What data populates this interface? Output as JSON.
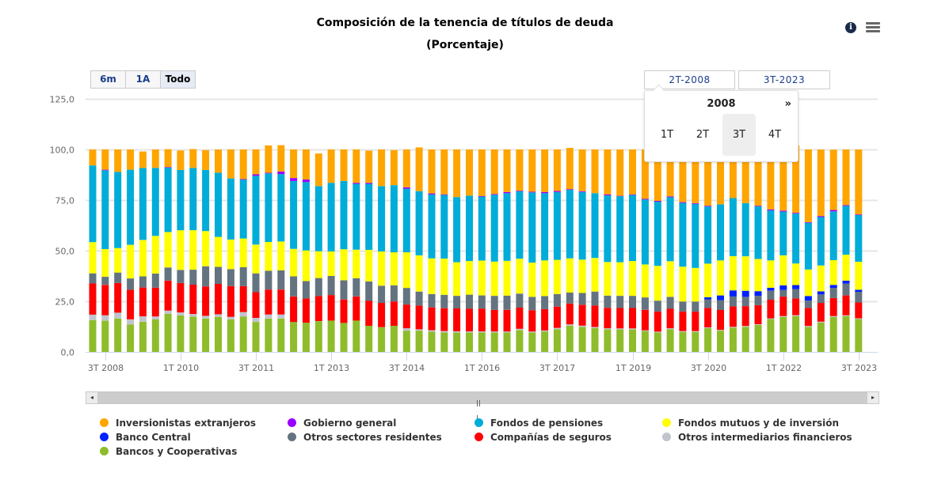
{
  "header": {
    "title": "Composición de la tenencia de títulos de deuda",
    "subtitle": "(Porcentaje)",
    "info_icon": "info-icon",
    "menu_icon": "hamburger-menu-icon"
  },
  "range_selector": {
    "buttons": [
      "6m",
      "1A",
      "Todo"
    ],
    "selected": "Todo",
    "from": "2T-2008",
    "to": "3T-2023"
  },
  "date_picker": {
    "year": "2008",
    "next_label": "»",
    "quarters": [
      "1T",
      "2T",
      "3T",
      "4T"
    ],
    "highlighted": "3T"
  },
  "scrollbar": {
    "left_arrow": "◂",
    "right_arrow": "▸"
  },
  "chart_data": {
    "type": "bar",
    "stacked": true,
    "title": "Composición de la tenencia de títulos de deuda",
    "subtitle": "(Porcentaje)",
    "xlabel": "",
    "ylabel": "",
    "ylim": [
      0,
      125
    ],
    "yticks": [
      "0,0",
      "25,0",
      "50,0",
      "75,0",
      "100,0",
      "125,0"
    ],
    "ytick_values": [
      0,
      25,
      50,
      75,
      100,
      125
    ],
    "xtick_labels": [
      "3T 2008",
      "1T 2010",
      "3T 2011",
      "1T 2013",
      "3T 2014",
      "1T 2016",
      "3T 2017",
      "1T 2019",
      "3T 2020",
      "1T 2022",
      "3T 2023"
    ],
    "xtick_indices": [
      1,
      7,
      13,
      19,
      25,
      31,
      37,
      43,
      49,
      55,
      61
    ],
    "grid": true,
    "legend_position": "bottom",
    "categories": [
      "2T 2008",
      "3T 2008",
      "4T 2008",
      "1T 2009",
      "2T 2009",
      "3T 2009",
      "4T 2009",
      "1T 2010",
      "2T 2010",
      "3T 2010",
      "4T 2010",
      "1T 2011",
      "2T 2011",
      "3T 2011",
      "4T 2011",
      "1T 2012",
      "2T 2012",
      "3T 2012",
      "4T 2012",
      "1T 2013",
      "2T 2013",
      "3T 2013",
      "4T 2013",
      "1T 2014",
      "2T 2014",
      "3T 2014",
      "4T 2014",
      "1T 2015",
      "2T 2015",
      "3T 2015",
      "4T 2015",
      "1T 2016",
      "2T 2016",
      "3T 2016",
      "4T 2016",
      "1T 2017",
      "2T 2017",
      "3T 2017",
      "4T 2017",
      "1T 2018",
      "2T 2018",
      "3T 2018",
      "4T 2018",
      "1T 2019",
      "2T 2019",
      "3T 2019",
      "4T 2019",
      "1T 2020",
      "2T 2020",
      "3T 2020",
      "4T 2020",
      "1T 2021",
      "2T 2021",
      "3T 2021",
      "4T 2021",
      "1T 2022",
      "2T 2022",
      "3T 2022",
      "4T 2022",
      "1T 2023",
      "2T 2023",
      "3T 2023"
    ],
    "series": [
      {
        "name": "Bancos y Cooperativas",
        "color": "#8fbc2b",
        "values": [
          15.7,
          15.4,
          16.5,
          13.5,
          14.9,
          16.0,
          18.8,
          18.0,
          17.4,
          16.5,
          17.3,
          16.0,
          17.4,
          14.8,
          16.5,
          16.5,
          14.8,
          14.4,
          15.2,
          15.5,
          14.3,
          15.5,
          12.9,
          12.2,
          12.9,
          10.5,
          10.5,
          10.0,
          9.6,
          9.6,
          9.6,
          9.6,
          9.6,
          9.6,
          10.8,
          9.6,
          10.1,
          11.2,
          12.9,
          12.4,
          11.8,
          11.2,
          11.1,
          11.1,
          10.3,
          9.6,
          11.2,
          9.9,
          9.9,
          11.7,
          10.5,
          12.0,
          12.4,
          13.3,
          16.2,
          17.3,
          17.7,
          12.4,
          14.5,
          17.3,
          17.7,
          16.2
        ]
      },
      {
        "name": "Otros intermediarios financieros",
        "color": "#c0c4cc",
        "values": [
          2.7,
          2.7,
          2.9,
          2.6,
          2.7,
          1.5,
          1.6,
          1.5,
          1.3,
          1.3,
          1.3,
          1.3,
          2.3,
          2.0,
          2.0,
          2.0,
          0.0,
          0.0,
          0.0,
          0.0,
          0.0,
          0.0,
          0.0,
          0.0,
          0.0,
          1.2,
          0.7,
          0.7,
          0.7,
          0.6,
          0.5,
          0.5,
          0.5,
          0.5,
          0.6,
          0.5,
          0.5,
          0.7,
          0.7,
          0.6,
          0.5,
          0.5,
          0.5,
          0.5,
          0.4,
          0.4,
          0.5,
          0.4,
          0.4,
          0.4,
          0.4,
          0.4,
          0.4,
          0.4,
          0.4,
          0.4,
          0.4,
          0.4,
          0.4,
          0.4,
          0.4,
          0.4
        ]
      },
      {
        "name": "Compañías de seguros",
        "color": "#ff0000",
        "values": [
          15.4,
          15.0,
          14.6,
          14.6,
          14.2,
          14.2,
          14.8,
          14.5,
          14.5,
          14.5,
          15.0,
          15.2,
          12.8,
          12.7,
          12.3,
          12.3,
          12.6,
          12.0,
          12.4,
          12.6,
          11.6,
          11.9,
          12.3,
          12.0,
          12.0,
          11.7,
          11.7,
          11.3,
          11.3,
          11.3,
          11.3,
          11.3,
          10.7,
          10.7,
          10.5,
          10.5,
          10.5,
          10.5,
          10.3,
          10.3,
          10.6,
          10.1,
          10.1,
          10.1,
          10.1,
          9.9,
          9.6,
          9.6,
          9.6,
          9.6,
          9.8,
          10.1,
          9.8,
          9.4,
          9.2,
          9.6,
          8.3,
          8.9,
          9.3,
          8.9,
          9.8,
          7.8
        ]
      },
      {
        "name": "Otros sectores residentes",
        "color": "#647380",
        "values": [
          5.0,
          4.0,
          5.2,
          5.6,
          5.5,
          7.0,
          6.5,
          6.5,
          7.4,
          10.0,
          8.4,
          8.4,
          9.3,
          9.3,
          9.3,
          9.5,
          9.9,
          8.6,
          8.9,
          9.4,
          9.5,
          9.0,
          9.6,
          8.5,
          8.0,
          8.2,
          6.9,
          6.6,
          6.6,
          6.2,
          6.9,
          6.5,
          6.9,
          7.0,
          6.9,
          6.6,
          6.5,
          6.2,
          5.4,
          5.8,
          6.9,
          6.0,
          6.0,
          6.0,
          6.1,
          5.4,
          5.9,
          5.0,
          5.0,
          4.3,
          4.9,
          4.9,
          4.6,
          4.6,
          4.4,
          3.3,
          4.6,
          3.6,
          4.2,
          5.0,
          5.8,
          5.3
        ]
      },
      {
        "name": "Banco Central",
        "color": "#0022ff",
        "values": [
          0,
          0,
          0,
          0,
          0,
          0,
          0,
          0,
          0,
          0,
          0,
          0,
          0,
          0,
          0,
          0,
          0,
          0,
          0,
          0,
          0,
          0,
          0,
          0,
          0,
          0,
          0,
          0,
          0,
          0,
          0,
          0,
          0,
          0,
          0,
          0,
          0,
          0,
          0,
          0,
          0,
          0,
          0,
          0,
          0,
          0,
          0,
          0,
          0,
          1.0,
          2.3,
          3.0,
          3.0,
          2.3,
          1.5,
          2.3,
          2.0,
          2.3,
          1.5,
          1.5,
          1.5,
          1.0
        ]
      },
      {
        "name": "Fondos mutuos y de inversión",
        "color": "#ffff00",
        "values": [
          15.4,
          13.7,
          12.1,
          16.6,
          18.0,
          18.6,
          17.5,
          19.6,
          19.5,
          17.4,
          14.8,
          14.6,
          14.2,
          14.2,
          14.2,
          14.2,
          13.6,
          15.1,
          13.2,
          12.1,
          15.3,
          14.1,
          15.6,
          16.9,
          16.3,
          17.6,
          17.9,
          17.6,
          17.9,
          16.6,
          16.6,
          17.2,
          16.9,
          17.2,
          17.2,
          16.9,
          17.6,
          16.9,
          16.9,
          16.5,
          16.6,
          16.6,
          16.6,
          17.2,
          16.3,
          17.2,
          17.6,
          17.2,
          16.6,
          16.6,
          17.3,
          16.9,
          17.0,
          15.9,
          13.5,
          14.8,
          10.7,
          13.1,
          12.8,
          12.2,
          12.8,
          13.8
        ]
      },
      {
        "name": "Fondos de pensiones",
        "color": "#00acd8",
        "values": [
          37.9,
          38.9,
          37.6,
          37.1,
          35.6,
          33.6,
          31.8,
          29.8,
          30.8,
          30.2,
          31.7,
          30.2,
          29.1,
          34.0,
          33.9,
          33.3,
          33.5,
          33.8,
          32.2,
          33.9,
          33.7,
          32.5,
          32.6,
          32.3,
          33.2,
          31.4,
          31.7,
          31.6,
          31.4,
          32.2,
          32.3,
          31.6,
          33.0,
          33.4,
          33.3,
          34.7,
          33.2,
          33.5,
          33.9,
          33.4,
          32.0,
          32.9,
          32.6,
          32.6,
          32.1,
          31.7,
          31.6,
          31.5,
          31.6,
          28.2,
          27.7,
          28.7,
          26.3,
          26.0,
          24.7,
          21.6,
          24.6,
          23.1,
          23.9,
          24.1,
          24.1,
          23.1
        ]
      },
      {
        "name": "Gobierno general",
        "color": "#9900ff",
        "values": [
          0,
          0.3,
          0,
          0,
          0,
          0,
          0.3,
          0,
          0,
          0,
          0,
          0,
          0.3,
          0.7,
          0.3,
          1.3,
          1.5,
          1.3,
          0,
          0,
          0,
          0.5,
          0.5,
          0,
          0,
          0.7,
          0,
          0.5,
          0.3,
          0,
          0,
          0.3,
          0.4,
          0.6,
          0.3,
          0.3,
          0.6,
          0.5,
          0.3,
          0.4,
          0,
          0.5,
          0.2,
          0.3,
          0.3,
          0.4,
          0.4,
          0.4,
          0.4,
          0.4,
          0,
          0,
          0,
          0.3,
          0.5,
          0.5,
          0.4,
          0.3,
          0.5,
          0.7,
          0.4,
          0.3
        ]
      },
      {
        "name": "Inversionistas extranjeros",
        "color": "#ffa500",
        "values": [
          7.9,
          10.0,
          11.1,
          10.0,
          8.1,
          9.1,
          8.8,
          9.6,
          9.3,
          9.8,
          11.5,
          14.3,
          14.6,
          12.3,
          13.5,
          13.0,
          14.1,
          14.8,
          16.1,
          16.5,
          15.6,
          16.5,
          15.9,
          18.1,
          17.3,
          18.7,
          21.6,
          21.7,
          22.2,
          23.5,
          22.8,
          23.0,
          22.0,
          21.0,
          20.4,
          20.9,
          21.0,
          20.5,
          20.4,
          20.6,
          21.6,
          22.2,
          22.9,
          22.2,
          24.4,
          25.4,
          23.2,
          26.0,
          26.5,
          28.0,
          27.1,
          25.1,
          26.5,
          27.8,
          29.6,
          30.2,
          33.3,
          35.9,
          32.9,
          29.8,
          27.5,
          32.1
        ]
      }
    ]
  }
}
